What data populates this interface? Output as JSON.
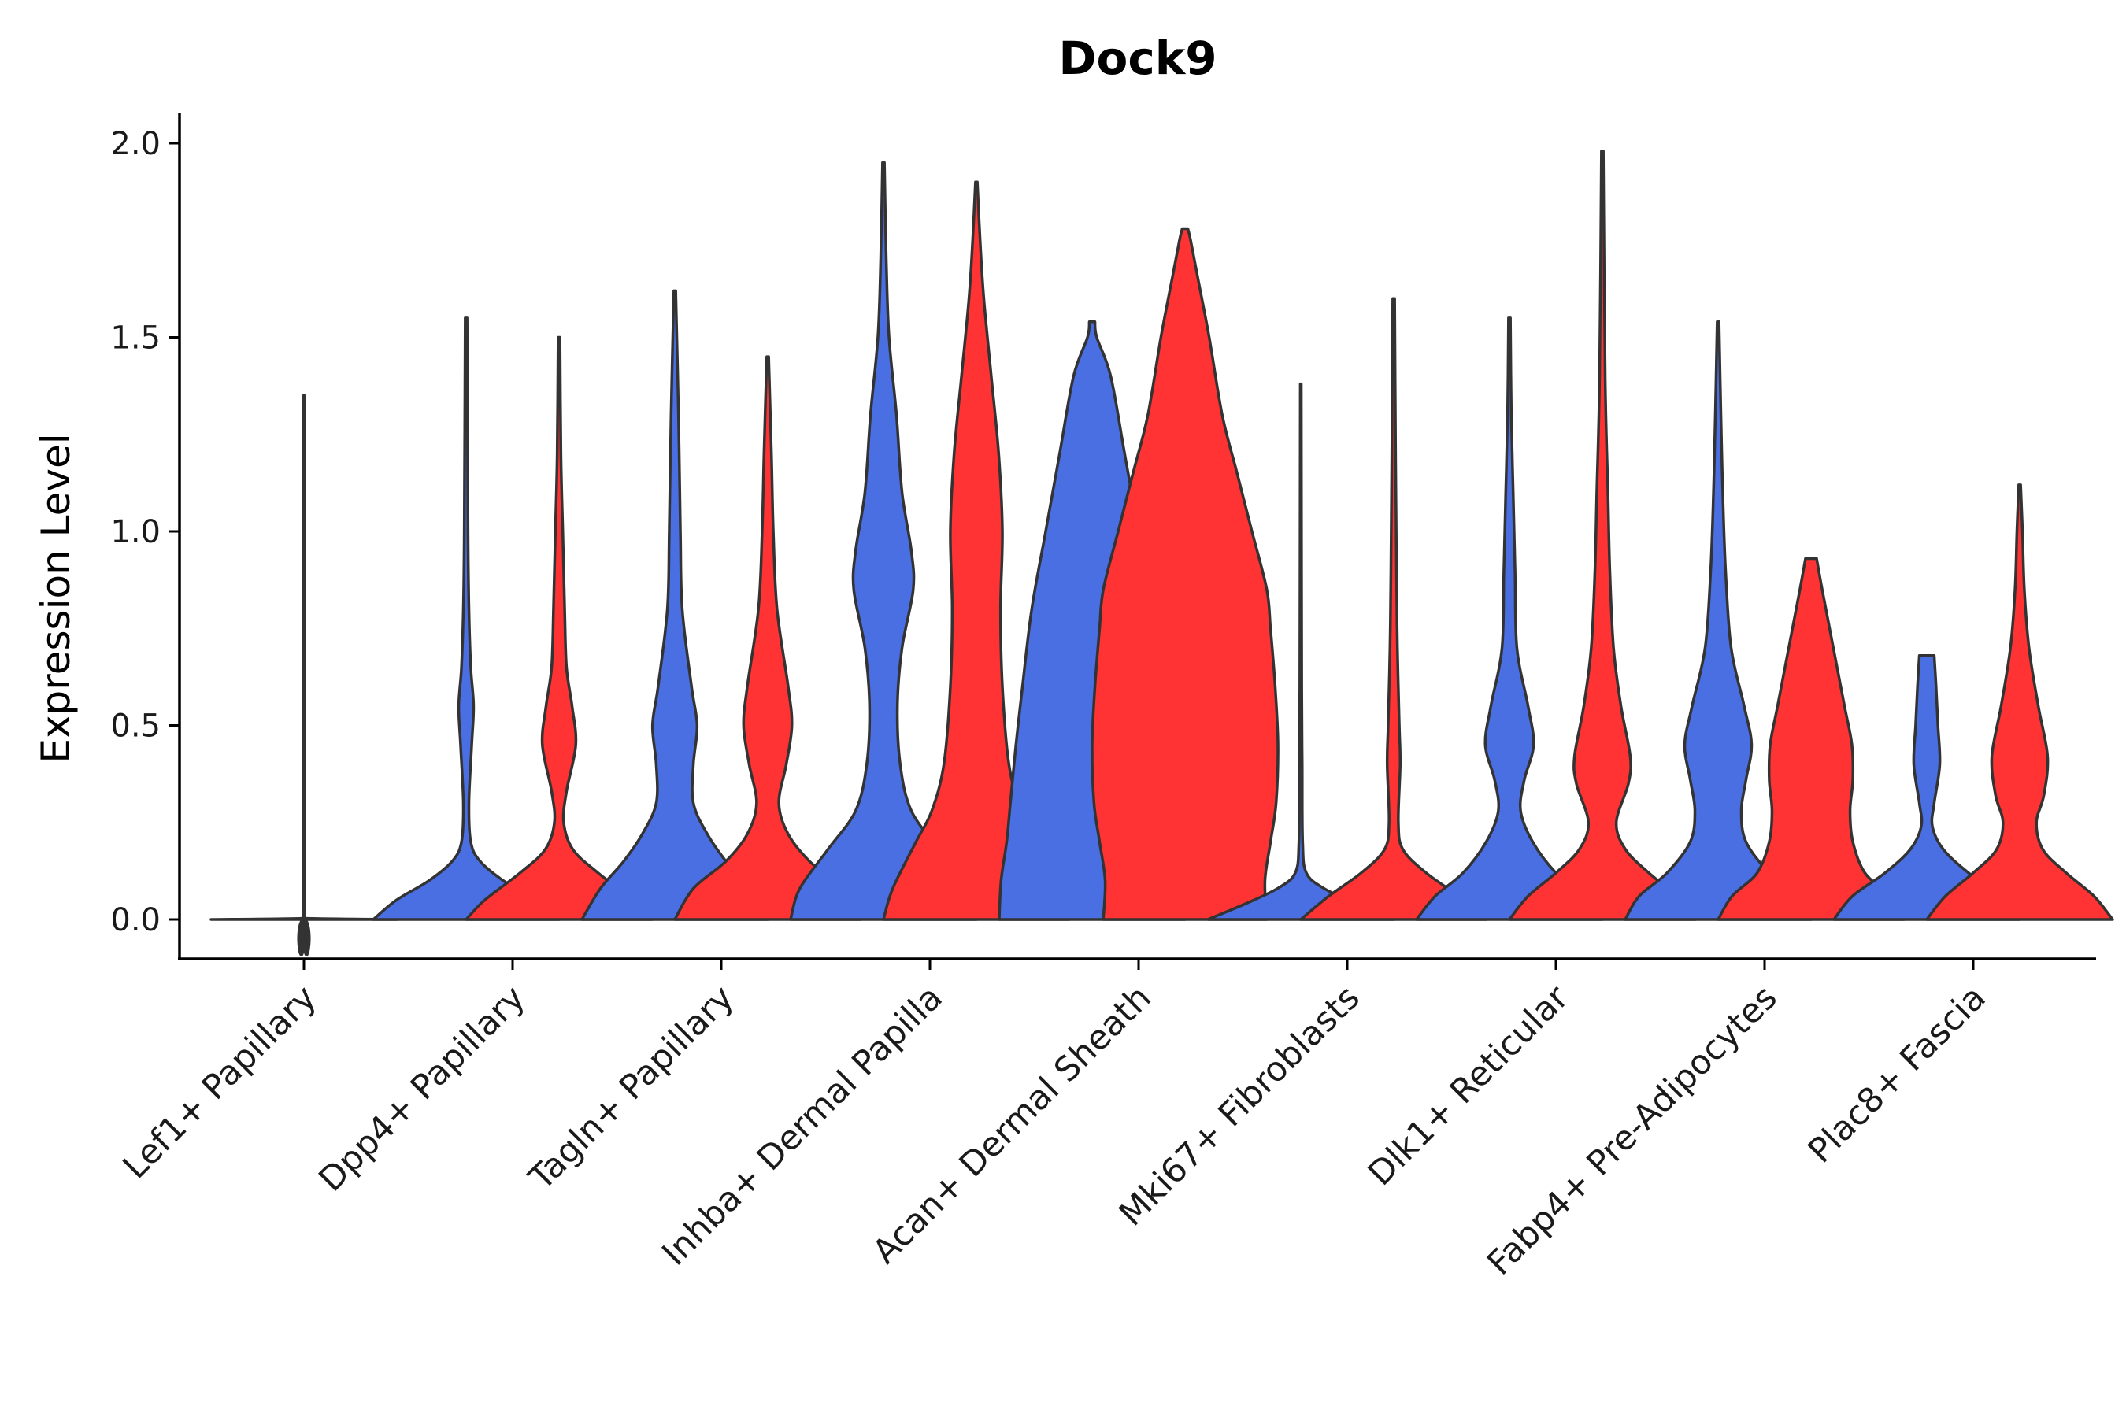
{
  "chart_data": {
    "type": "violin",
    "title": "Dock9",
    "xlabel": "",
    "ylabel": "Expression Level",
    "ylim": [
      -0.1,
      2.09
    ],
    "yticks": [
      "0.0",
      "0.5",
      "1.0",
      "1.5",
      "2.0"
    ],
    "grid": false,
    "legend": "none",
    "colors": {
      "blue": "#4A6FE3",
      "red": "#FF3333",
      "single": "#333333"
    },
    "categories": [
      "Lef1+ Papillary",
      "Dpp4+ Papillary",
      "Tagln+ Papillary",
      "Inhba+ Dermal Papilla",
      "Acan+ Dermal Sheath",
      "Mki67+ Fibroblasts",
      "Dlk1+ Reticular",
      "Fabp4+ Pre-Adipocytes",
      "Plac8+ Fascia"
    ],
    "violins": [
      {
        "category": "Lef1+ Papillary",
        "group": "single",
        "max": 1.35,
        "profile": [
          [
            0,
            1
          ],
          [
            0.003,
            0.02
          ],
          [
            0.01,
            0.005
          ],
          [
            1.35,
            0.005
          ]
        ]
      },
      {
        "category": "Dpp4+ Papillary",
        "group": "blue",
        "max": 1.55,
        "profile": [
          [
            0,
            1
          ],
          [
            0.05,
            0.75
          ],
          [
            0.1,
            0.4
          ],
          [
            0.15,
            0.15
          ],
          [
            0.2,
            0.05
          ],
          [
            0.3,
            0.03
          ],
          [
            0.45,
            0.06
          ],
          [
            0.55,
            0.08
          ],
          [
            0.65,
            0.05
          ],
          [
            0.8,
            0.03
          ],
          [
            1.0,
            0.02
          ],
          [
            1.55,
            0.01
          ]
        ]
      },
      {
        "category": "Dpp4+ Papillary",
        "group": "red",
        "max": 1.5,
        "profile": [
          [
            0,
            1
          ],
          [
            0.05,
            0.8
          ],
          [
            0.12,
            0.42
          ],
          [
            0.18,
            0.15
          ],
          [
            0.25,
            0.05
          ],
          [
            0.33,
            0.08
          ],
          [
            0.45,
            0.18
          ],
          [
            0.55,
            0.14
          ],
          [
            0.65,
            0.08
          ],
          [
            0.8,
            0.06
          ],
          [
            1.0,
            0.04
          ],
          [
            1.2,
            0.02
          ],
          [
            1.5,
            0.01
          ]
        ]
      },
      {
        "category": "Tagln+ Papillary",
        "group": "blue",
        "max": 1.62,
        "profile": [
          [
            0,
            1
          ],
          [
            0.08,
            0.8
          ],
          [
            0.15,
            0.55
          ],
          [
            0.22,
            0.35
          ],
          [
            0.3,
            0.2
          ],
          [
            0.4,
            0.2
          ],
          [
            0.5,
            0.24
          ],
          [
            0.6,
            0.18
          ],
          [
            0.8,
            0.08
          ],
          [
            1.0,
            0.06
          ],
          [
            1.3,
            0.04
          ],
          [
            1.62,
            0.01
          ]
        ]
      },
      {
        "category": "Tagln+ Papillary",
        "group": "red",
        "max": 1.45,
        "profile": [
          [
            0,
            1
          ],
          [
            0.08,
            0.8
          ],
          [
            0.15,
            0.45
          ],
          [
            0.22,
            0.22
          ],
          [
            0.3,
            0.12
          ],
          [
            0.4,
            0.2
          ],
          [
            0.5,
            0.26
          ],
          [
            0.6,
            0.22
          ],
          [
            0.8,
            0.1
          ],
          [
            1.0,
            0.06
          ],
          [
            1.2,
            0.04
          ],
          [
            1.45,
            0.01
          ]
        ]
      },
      {
        "category": "Inhba+ Dermal Papilla",
        "group": "blue",
        "max": 1.95,
        "profile": [
          [
            0,
            1
          ],
          [
            0.08,
            0.9
          ],
          [
            0.18,
            0.6
          ],
          [
            0.28,
            0.3
          ],
          [
            0.4,
            0.18
          ],
          [
            0.55,
            0.15
          ],
          [
            0.7,
            0.2
          ],
          [
            0.85,
            0.32
          ],
          [
            0.95,
            0.3
          ],
          [
            1.1,
            0.2
          ],
          [
            1.3,
            0.14
          ],
          [
            1.5,
            0.06
          ],
          [
            1.7,
            0.03
          ],
          [
            1.95,
            0.01
          ]
        ]
      },
      {
        "category": "Inhba+ Dermal Papilla",
        "group": "red",
        "max": 1.9,
        "profile": [
          [
            0,
            1
          ],
          [
            0.08,
            0.9
          ],
          [
            0.2,
            0.65
          ],
          [
            0.28,
            0.48
          ],
          [
            0.4,
            0.35
          ],
          [
            0.6,
            0.28
          ],
          [
            0.8,
            0.26
          ],
          [
            1.0,
            0.28
          ],
          [
            1.2,
            0.24
          ],
          [
            1.4,
            0.16
          ],
          [
            1.6,
            0.08
          ],
          [
            1.75,
            0.04
          ],
          [
            1.9,
            0.01
          ]
        ]
      },
      {
        "category": "Acan+ Dermal Sheath",
        "group": "blue",
        "max": 1.54,
        "profile": [
          [
            0,
            1
          ],
          [
            0.1,
            0.98
          ],
          [
            0.2,
            0.92
          ],
          [
            0.3,
            0.88
          ],
          [
            0.45,
            0.82
          ],
          [
            0.6,
            0.75
          ],
          [
            0.8,
            0.65
          ],
          [
            1.0,
            0.5
          ],
          [
            1.2,
            0.35
          ],
          [
            1.4,
            0.2
          ],
          [
            1.5,
            0.05
          ],
          [
            1.54,
            0.03
          ]
        ]
      },
      {
        "category": "Acan+ Dermal Sheath",
        "group": "red",
        "max": 1.78,
        "profile": [
          [
            0,
            0.88
          ],
          [
            0.1,
            0.86
          ],
          [
            0.2,
            0.92
          ],
          [
            0.3,
            0.98
          ],
          [
            0.45,
            1.0
          ],
          [
            0.6,
            0.97
          ],
          [
            0.75,
            0.92
          ],
          [
            0.85,
            0.88
          ],
          [
            1.0,
            0.72
          ],
          [
            1.15,
            0.56
          ],
          [
            1.3,
            0.4
          ],
          [
            1.5,
            0.26
          ],
          [
            1.65,
            0.14
          ],
          [
            1.75,
            0.06
          ],
          [
            1.78,
            0.03
          ]
        ]
      },
      {
        "category": "Mki67+ Fibroblasts",
        "group": "blue",
        "max": 1.38,
        "profile": [
          [
            0,
            1
          ],
          [
            0.04,
            0.6
          ],
          [
            0.08,
            0.25
          ],
          [
            0.12,
            0.06
          ],
          [
            0.2,
            0.02
          ],
          [
            0.4,
            0.015
          ],
          [
            0.6,
            0.01
          ],
          [
            1.38,
            0.005
          ]
        ]
      },
      {
        "category": "Mki67+ Fibroblasts",
        "group": "red",
        "max": 1.6,
        "profile": [
          [
            0,
            1
          ],
          [
            0.06,
            0.7
          ],
          [
            0.12,
            0.35
          ],
          [
            0.18,
            0.1
          ],
          [
            0.25,
            0.05
          ],
          [
            0.4,
            0.07
          ],
          [
            0.5,
            0.06
          ],
          [
            0.7,
            0.04
          ],
          [
            0.9,
            0.03
          ],
          [
            1.2,
            0.02
          ],
          [
            1.6,
            0.01
          ]
        ]
      },
      {
        "category": "Dlk1+ Reticular",
        "group": "blue",
        "max": 1.55,
        "profile": [
          [
            0,
            1
          ],
          [
            0.06,
            0.8
          ],
          [
            0.12,
            0.5
          ],
          [
            0.2,
            0.25
          ],
          [
            0.28,
            0.12
          ],
          [
            0.36,
            0.16
          ],
          [
            0.45,
            0.26
          ],
          [
            0.55,
            0.2
          ],
          [
            0.7,
            0.08
          ],
          [
            0.9,
            0.06
          ],
          [
            1.1,
            0.04
          ],
          [
            1.3,
            0.02
          ],
          [
            1.55,
            0.01
          ]
        ]
      },
      {
        "category": "Dlk1+ Reticular",
        "group": "red",
        "max": 1.98,
        "profile": [
          [
            0,
            1
          ],
          [
            0.06,
            0.8
          ],
          [
            0.12,
            0.5
          ],
          [
            0.18,
            0.25
          ],
          [
            0.25,
            0.15
          ],
          [
            0.35,
            0.28
          ],
          [
            0.42,
            0.3
          ],
          [
            0.55,
            0.2
          ],
          [
            0.7,
            0.12
          ],
          [
            0.9,
            0.08
          ],
          [
            1.1,
            0.06
          ],
          [
            1.4,
            0.03
          ],
          [
            1.98,
            0.01
          ]
        ]
      },
      {
        "category": "Fabp4+ Pre-Adipocytes",
        "group": "blue",
        "max": 1.54,
        "profile": [
          [
            0,
            1
          ],
          [
            0.06,
            0.85
          ],
          [
            0.12,
            0.55
          ],
          [
            0.2,
            0.3
          ],
          [
            0.28,
            0.25
          ],
          [
            0.36,
            0.3
          ],
          [
            0.45,
            0.36
          ],
          [
            0.55,
            0.28
          ],
          [
            0.7,
            0.14
          ],
          [
            0.9,
            0.08
          ],
          [
            1.1,
            0.05
          ],
          [
            1.3,
            0.03
          ],
          [
            1.54,
            0.01
          ]
        ]
      },
      {
        "category": "Fabp4+ Pre-Adipocytes",
        "group": "red",
        "max": 0.93,
        "profile": [
          [
            0,
            1
          ],
          [
            0.06,
            0.85
          ],
          [
            0.12,
            0.58
          ],
          [
            0.2,
            0.45
          ],
          [
            0.28,
            0.42
          ],
          [
            0.36,
            0.45
          ],
          [
            0.45,
            0.44
          ],
          [
            0.55,
            0.36
          ],
          [
            0.7,
            0.24
          ],
          [
            0.85,
            0.12
          ],
          [
            0.93,
            0.06
          ]
        ]
      },
      {
        "category": "Plac8+ Fascia",
        "group": "blue",
        "max": 0.68,
        "profile": [
          [
            0,
            1
          ],
          [
            0.06,
            0.8
          ],
          [
            0.12,
            0.45
          ],
          [
            0.18,
            0.18
          ],
          [
            0.24,
            0.06
          ],
          [
            0.3,
            0.08
          ],
          [
            0.4,
            0.14
          ],
          [
            0.5,
            0.12
          ],
          [
            0.6,
            0.1
          ],
          [
            0.68,
            0.08
          ]
        ]
      },
      {
        "category": "Plac8+ Fascia",
        "group": "red",
        "max": 1.12,
        "profile": [
          [
            0,
            1
          ],
          [
            0.06,
            0.8
          ],
          [
            0.12,
            0.5
          ],
          [
            0.18,
            0.25
          ],
          [
            0.25,
            0.18
          ],
          [
            0.32,
            0.26
          ],
          [
            0.42,
            0.3
          ],
          [
            0.55,
            0.2
          ],
          [
            0.7,
            0.1
          ],
          [
            0.85,
            0.05
          ],
          [
            1.0,
            0.03
          ],
          [
            1.12,
            0.01
          ]
        ]
      }
    ]
  }
}
